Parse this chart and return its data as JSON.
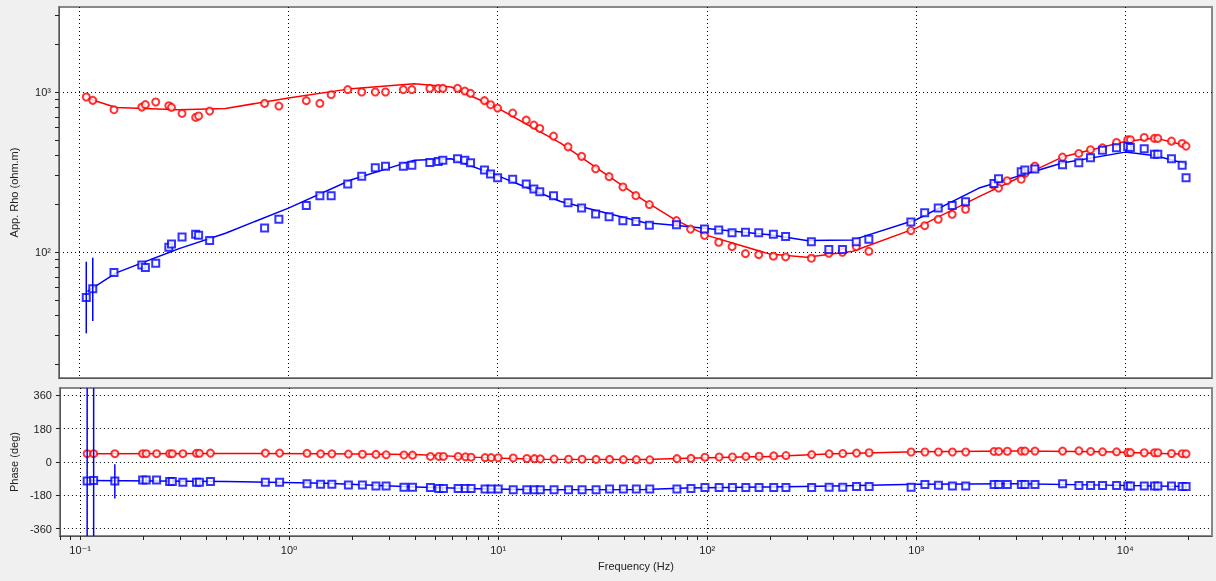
{
  "chart_data": [
    {
      "type": "scatter",
      "ylabel": "App. Rho (ohm.m)",
      "log": "xy",
      "grid": true,
      "tick_labels": "y",
      "xlim": [
        0.08,
        26000
      ],
      "ylim": [
        16.3,
        3400
      ],
      "xticks": [
        {
          "value": 0.1,
          "label": null
        },
        {
          "value": 1,
          "label": null
        },
        {
          "value": 10,
          "label": null
        },
        {
          "value": 100,
          "label": null
        },
        {
          "value": 1000,
          "label": null
        },
        {
          "value": 10000,
          "label": null
        }
      ],
      "yticks": [
        {
          "value": 20,
          "label": null
        },
        {
          "value": 30,
          "label": null
        },
        {
          "value": 40,
          "label": null
        },
        {
          "value": 50,
          "label": null
        },
        {
          "value": 60,
          "label": null
        },
        {
          "value": 70,
          "label": null
        },
        {
          "value": 80,
          "label": null
        },
        {
          "value": 90,
          "label": null
        },
        {
          "value": 100,
          "label": "10²"
        },
        {
          "value": 200,
          "label": null
        },
        {
          "value": 300,
          "label": null
        },
        {
          "value": 400,
          "label": null
        },
        {
          "value": 500,
          "label": null
        },
        {
          "value": 600,
          "label": null
        },
        {
          "value": 700,
          "label": null
        },
        {
          "value": 800,
          "label": null
        },
        {
          "value": 900,
          "label": null
        },
        {
          "value": 1000,
          "label": "10³"
        },
        {
          "value": 2000,
          "label": null
        },
        {
          "value": 3000,
          "label": null
        }
      ],
      "series": [
        {
          "type": "line",
          "color": "#ff0000",
          "marker": "none",
          "x": [
            0.11,
            0.15,
            0.3,
            0.5,
            1,
            2,
            4,
            6,
            10,
            20,
            50,
            70,
            100,
            200,
            300,
            500,
            1000,
            2000,
            5000,
            10000,
            14000,
            19500
          ],
          "values": [
            910,
            800,
            775,
            790,
            917,
            1050,
            1127,
            1075,
            794,
            479,
            210,
            160,
            127,
            97,
            92.7,
            101,
            141,
            222,
            392,
            491,
            515,
            463
          ]
        },
        {
          "type": "line",
          "color": "#0000ff",
          "marker": "none",
          "x": [
            0.11,
            0.15,
            0.3,
            0.5,
            1,
            2,
            4,
            6,
            10,
            20,
            50,
            70,
            100,
            200,
            300,
            500,
            1000,
            2000,
            5000,
            10000,
            14000,
            19500
          ],
          "values": [
            57,
            74,
            105,
            131,
            188,
            283,
            375,
            383,
            300,
            207,
            153,
            147,
            140,
            128,
            118,
            119,
            159,
            251,
            360,
            421,
            399,
            356
          ]
        },
        {
          "type": "scatter",
          "color": "#ff0000",
          "marker": "circle",
          "x": [
            0.108,
            0.116,
            0.1465,
            0.199,
            0.207,
            0.232,
            0.268,
            0.276,
            0.31,
            0.36,
            0.372,
            0.42,
            0.769,
            0.9,
            1.217,
            1.413,
            1.6,
            1.92,
            2.24,
            2.6,
            2.91,
            3.54,
            3.89,
            4.74,
            5.2,
            5.47,
            6.43,
            6.97,
            7.42,
            8.65,
            9.25,
            10,
            11.8,
            13.7,
            14.9,
            15.9,
            18.5,
            21.7,
            25.2,
            29.4,
            34.1,
            39.7,
            45.8,
            53.1,
            71.6,
            83.6,
            97.5,
            114,
            132,
            153,
            177,
            208,
            238,
            316,
            383,
            445,
            518,
            595,
            945,
            1100,
            1277,
            1489,
            1725,
            2357,
            2480,
            2728,
            3183,
            3313,
            3698,
            5014,
            6000,
            6826,
            7787,
            9087,
            10280,
            10590,
            12330,
            13800,
            14320,
            16640,
            18720,
            19540
          ],
          "values": [
            931,
            887,
            775,
            805,
            834,
            866,
            821,
            802,
            735,
            694,
            708,
            760,
            849,
            817,
            883,
            849,
            962,
            1035,
            1000,
            1000,
            1000,
            1035,
            1035,
            1054,
            1054,
            1054,
            1054,
            1014,
            981,
            883,
            833,
            794,
            739,
            668,
            621,
            592,
            530,
            454,
            396,
            331,
            296,
            255,
            225,
            198,
            157,
            139,
            127,
            115,
            108,
            97.7,
            96.3,
            94.1,
            93.1,
            91.4,
            98.2,
            99.6,
            108,
            101,
            136,
            146,
            160,
            172,
            185,
            261,
            251,
            279,
            285,
            310,
            344,
            392,
            413,
            436,
            448,
            484,
            503,
            503,
            520,
            513,
            513,
            493,
            477,
            459
          ]
        },
        {
          "type": "scatter",
          "color": "#0000ff",
          "marker": "square",
          "x": [
            0.108,
            0.116,
            0.1465,
            0.199,
            0.207,
            0.232,
            0.268,
            0.276,
            0.31,
            0.36,
            0.372,
            0.42,
            0.769,
            0.9,
            1.217,
            1.413,
            1.6,
            1.92,
            2.24,
            2.6,
            2.91,
            3.54,
            3.89,
            4.74,
            5.2,
            5.47,
            6.43,
            6.97,
            7.42,
            8.65,
            9.25,
            10,
            11.8,
            13.7,
            14.9,
            15.9,
            18.5,
            21.7,
            25.2,
            29.4,
            34.1,
            39.7,
            45.8,
            53.1,
            71.6,
            83.6,
            97.5,
            114,
            132,
            153,
            177,
            208,
            238,
            316,
            383,
            445,
            518,
            595,
            945,
            1100,
            1277,
            1489,
            1725,
            2357,
            2480,
            2728,
            3183,
            3313,
            3698,
            5014,
            6000,
            6826,
            7787,
            9087,
            10280,
            10590,
            12330,
            13800,
            14320,
            16640,
            18720,
            19540
          ],
          "values": [
            52,
            59,
            74.3,
            83,
            80,
            85,
            107,
            112,
            124,
            129,
            127,
            118,
            141,
            160,
            195,
            225,
            225,
            266,
            297,
            336,
            343,
            343,
            349,
            363,
            368,
            375,
            383,
            375,
            361,
            325,
            307,
            291,
            285,
            266,
            248,
            238,
            225,
            203,
            188,
            173,
            166,
            157,
            155,
            147,
            148,
            null,
            139,
            137,
            132,
            133,
            132,
            129,
            125,
            116,
            103.5,
            103.5,
            116,
            120,
            154,
            176,
            188,
            195,
            206,
            268,
            287,
            null,
            317,
            326,
            330,
            351,
            361,
            388,
            432,
            448,
            457,
            450,
            442,
            409,
            409,
            383,
            348,
            291
          ],
          "errors": [
            [
              31,
              87
            ],
            [
              37,
              92
            ],
            null,
            null,
            null,
            null,
            null,
            null,
            null,
            null,
            null,
            null,
            null,
            null,
            null,
            null,
            null,
            null,
            null,
            null,
            null,
            null,
            null,
            null,
            null,
            null,
            null,
            null,
            null,
            null,
            null,
            null,
            null,
            null,
            null,
            null,
            null,
            null,
            null,
            null,
            null,
            null,
            null,
            null,
            null,
            null,
            null,
            null,
            null,
            null,
            null,
            null,
            null,
            null,
            null,
            null,
            null,
            null,
            null,
            null,
            null,
            null,
            null,
            null,
            null,
            null,
            null,
            null,
            null,
            null,
            null,
            null,
            null,
            null,
            null,
            null,
            null,
            null,
            null,
            null,
            null,
            null
          ]
        }
      ]
    },
    {
      "type": "scatter",
      "ylabel": "Phase (deg)",
      "xlabel": "Frequency (Hz)",
      "log": "x",
      "grid": true,
      "xlim": [
        0.08,
        26000
      ],
      "ylim": [
        -400,
        400
      ],
      "xticks": [
        {
          "value": 0.08,
          "label": null
        },
        {
          "value": 0.09,
          "label": null
        },
        {
          "value": 0.1,
          "label": "10⁻¹"
        },
        {
          "value": 0.2,
          "label": null
        },
        {
          "value": 0.3,
          "label": null
        },
        {
          "value": 0.4,
          "label": null
        },
        {
          "value": 0.5,
          "label": null
        },
        {
          "value": 0.6,
          "label": null
        },
        {
          "value": 0.7,
          "label": null
        },
        {
          "value": 0.8,
          "label": null
        },
        {
          "value": 0.9,
          "label": null
        },
        {
          "value": 1,
          "label": "10⁰"
        },
        {
          "value": 2,
          "label": null
        },
        {
          "value": 3,
          "label": null
        },
        {
          "value": 4,
          "label": null
        },
        {
          "value": 5,
          "label": null
        },
        {
          "value": 6,
          "label": null
        },
        {
          "value": 7,
          "label": null
        },
        {
          "value": 8,
          "label": null
        },
        {
          "value": 9,
          "label": null
        },
        {
          "value": 10,
          "label": "10¹"
        },
        {
          "value": 20,
          "label": null
        },
        {
          "value": 30,
          "label": null
        },
        {
          "value": 40,
          "label": null
        },
        {
          "value": 50,
          "label": null
        },
        {
          "value": 60,
          "label": null
        },
        {
          "value": 70,
          "label": null
        },
        {
          "value": 80,
          "label": null
        },
        {
          "value": 90,
          "label": null
        },
        {
          "value": 100,
          "label": "10²"
        },
        {
          "value": 200,
          "label": null
        },
        {
          "value": 300,
          "label": null
        },
        {
          "value": 400,
          "label": null
        },
        {
          "value": 500,
          "label": null
        },
        {
          "value": 600,
          "label": null
        },
        {
          "value": 700,
          "label": null
        },
        {
          "value": 800,
          "label": null
        },
        {
          "value": 900,
          "label": null
        },
        {
          "value": 1000,
          "label": "10³"
        },
        {
          "value": 2000,
          "label": null
        },
        {
          "value": 3000,
          "label": null
        },
        {
          "value": 4000,
          "label": null
        },
        {
          "value": 5000,
          "label": null
        },
        {
          "value": 6000,
          "label": null
        },
        {
          "value": 7000,
          "label": null
        },
        {
          "value": 8000,
          "label": null
        },
        {
          "value": 9000,
          "label": null
        },
        {
          "value": 10000,
          "label": "10⁴"
        },
        {
          "value": 20000,
          "label": null
        }
      ],
      "yticks": [
        -360,
        -180,
        0,
        180,
        360
      ],
      "series": [
        {
          "type": "line",
          "color": "#ff0000",
          "marker": "none",
          "x": [
            0.11,
            0.5,
            1.5,
            4,
            8,
            15,
            50,
            80,
            200,
            400,
            1000,
            3000,
            8000,
            19500
          ],
          "values": [
            45,
            46,
            45,
            40,
            25,
            15,
            13,
            20,
            30,
            45,
            55,
            60,
            55,
            42
          ]
        },
        {
          "type": "line",
          "color": "#0000ff",
          "marker": "none",
          "x": [
            0.11,
            0.5,
            1.5,
            4,
            8,
            15,
            50,
            80,
            200,
            400,
            1000,
            3000,
            8000,
            19500
          ],
          "values": [
            -100,
            -105,
            -115,
            -135,
            -145,
            -150,
            -148,
            -140,
            -135,
            -130,
            -120,
            -118,
            -125,
            -132
          ]
        },
        {
          "type": "scatter",
          "color": "#ff0000",
          "marker": "circle",
          "x": [
            0.108,
            0.116,
            0.1465,
            0.199,
            0.207,
            0.232,
            0.268,
            0.276,
            0.31,
            0.36,
            0.372,
            0.42,
            0.769,
            0.9,
            1.217,
            1.413,
            1.6,
            1.92,
            2.24,
            2.6,
            2.91,
            3.54,
            3.89,
            4.74,
            5.2,
            5.47,
            6.43,
            6.97,
            7.42,
            8.65,
            9.25,
            10,
            11.8,
            13.7,
            14.9,
            15.9,
            18.5,
            21.7,
            25.2,
            29.4,
            34.1,
            39.7,
            45.8,
            53.1,
            71.6,
            83.6,
            97.5,
            114,
            132,
            153,
            177,
            208,
            238,
            316,
            383,
            445,
            518,
            595,
            945,
            1100,
            1277,
            1489,
            1725,
            2357,
            2480,
            2728,
            3183,
            3313,
            3698,
            5014,
            6000,
            6826,
            7787,
            9087,
            10280,
            10590,
            12330,
            13800,
            14320,
            16640,
            18720,
            19540
          ],
          "values": [
            45,
            45,
            45,
            45,
            45,
            45,
            45,
            45,
            45,
            47,
            47,
            48,
            48,
            48,
            47,
            44,
            44,
            43,
            42,
            41,
            39,
            38,
            37,
            30,
            30,
            30,
            30,
            28,
            26,
            24,
            24,
            23,
            22,
            19,
            18,
            17,
            16,
            15,
            15,
            14,
            14,
            13,
            13,
            12,
            18,
            20,
            26,
            27,
            27,
            30,
            31,
            33,
            35,
            40,
            44,
            46,
            48,
            50,
            54,
            54,
            54,
            54,
            54,
            57,
            57,
            58,
            59,
            59,
            59,
            59,
            60,
            57,
            55,
            55,
            51,
            51,
            50,
            50,
            50,
            46,
            45,
            44
          ]
        },
        {
          "type": "scatter",
          "color": "#0000ff",
          "marker": "square",
          "x": [
            0.108,
            0.116,
            0.1465,
            0.199,
            0.207,
            0.232,
            0.268,
            0.276,
            0.31,
            0.36,
            0.372,
            0.42,
            0.769,
            0.9,
            1.217,
            1.413,
            1.6,
            1.92,
            2.24,
            2.6,
            2.91,
            3.54,
            3.89,
            4.74,
            5.2,
            5.47,
            6.43,
            6.97,
            7.42,
            8.65,
            9.25,
            10,
            11.8,
            13.7,
            14.9,
            15.9,
            18.5,
            21.7,
            25.2,
            29.4,
            34.1,
            39.7,
            45.8,
            53.1,
            71.6,
            83.6,
            97.5,
            114,
            132,
            153,
            177,
            208,
            238,
            316,
            383,
            445,
            518,
            595,
            945,
            1100,
            1277,
            1489,
            1725,
            2357,
            2480,
            2728,
            3183,
            3313,
            3698,
            5014,
            6000,
            6826,
            7787,
            9087,
            10280,
            10590,
            12330,
            13800,
            14320,
            16640,
            18720,
            19540
          ],
          "values": [
            -103,
            -100,
            -103,
            -97,
            -97,
            -97,
            -106,
            -106,
            -110,
            -110,
            -110,
            -106,
            -110,
            -110,
            -118,
            -120,
            -120,
            -124,
            -124,
            -130,
            -130,
            -136,
            -136,
            -138,
            -143,
            -143,
            -143,
            -143,
            -143,
            -146,
            -146,
            -146,
            -150,
            -150,
            -150,
            -150,
            -150,
            -150,
            -150,
            -150,
            -146,
            -146,
            -146,
            -146,
            -146,
            -143,
            -138,
            -138,
            -138,
            -138,
            -138,
            -138,
            -138,
            -138,
            -136,
            -136,
            -132,
            -132,
            -136,
            -121,
            -125,
            -130,
            -130,
            -121,
            -121,
            -121,
            -121,
            -121,
            -121,
            -118,
            -127,
            -127,
            -127,
            -127,
            -130,
            -130,
            -130,
            -130,
            -130,
            -130,
            -133,
            -133
          ],
          "errors": [
            [
              -400,
              400
            ],
            [
              -400,
              400
            ],
            [
              -197,
              -12
            ],
            null,
            null,
            null,
            null,
            null,
            null,
            null,
            null,
            null,
            null,
            null,
            null,
            null,
            null,
            null,
            null,
            null,
            null,
            null,
            null,
            null,
            null,
            null,
            null,
            null,
            null,
            null,
            null,
            null,
            null,
            null,
            null,
            null,
            null,
            null,
            null,
            null,
            null,
            null,
            null,
            null,
            null,
            null,
            null,
            null,
            null,
            null,
            null,
            null,
            null,
            null,
            null,
            null,
            null,
            null,
            null,
            null,
            null,
            null,
            null,
            null,
            null,
            null,
            null,
            null,
            null,
            null,
            null,
            null,
            null,
            null,
            null,
            null,
            null,
            null,
            null,
            null,
            null,
            null
          ]
        }
      ]
    }
  ]
}
